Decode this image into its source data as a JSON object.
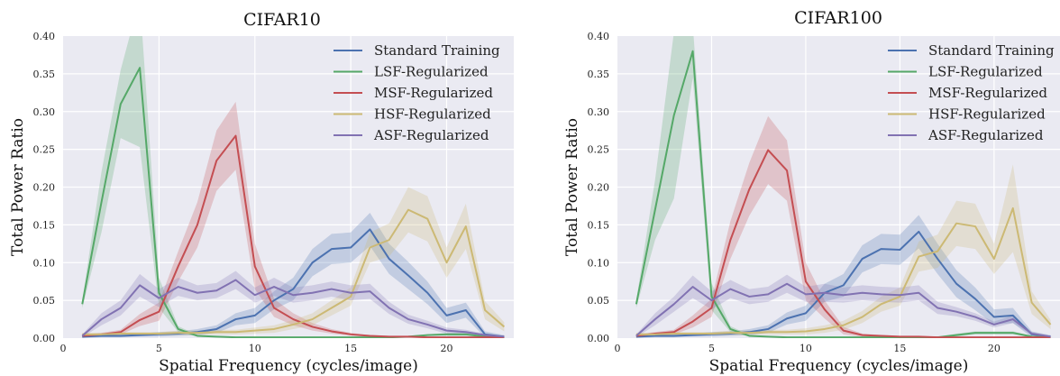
{
  "chart_data": [
    {
      "type": "line",
      "title": "CIFAR10",
      "xlabel": "Spatial Frequency (cycles/image)",
      "ylabel": "Total Power Ratio",
      "xlim": [
        0,
        23.5
      ],
      "ylim": [
        0,
        0.4
      ],
      "xticks": [
        "0",
        "5",
        "10",
        "15",
        "20"
      ],
      "yticks": [
        "0.00",
        "0.05",
        "0.10",
        "0.15",
        "0.20",
        "0.25",
        "0.30",
        "0.35",
        "0.40"
      ],
      "grid": true,
      "legend_position": "top-right",
      "x": [
        1,
        2,
        3,
        4,
        5,
        6,
        7,
        8,
        9,
        10,
        11,
        12,
        13,
        14,
        15,
        16,
        17,
        18,
        19,
        20,
        21,
        22,
        23
      ],
      "series": [
        {
          "name": "Standard Training",
          "color": "#4c72b0",
          "values": [
            0.002,
            0.003,
            0.003,
            0.004,
            0.005,
            0.006,
            0.008,
            0.012,
            0.025,
            0.03,
            0.05,
            0.065,
            0.1,
            0.118,
            0.12,
            0.144,
            0.105,
            0.083,
            0.06,
            0.03,
            0.037,
            0.005,
            0.002
          ],
          "band": [
            0.002,
            0.002,
            0.002,
            0.002,
            0.003,
            0.003,
            0.004,
            0.005,
            0.008,
            0.01,
            0.012,
            0.015,
            0.018,
            0.02,
            0.02,
            0.022,
            0.02,
            0.018,
            0.015,
            0.01,
            0.01,
            0.004,
            0.002
          ]
        },
        {
          "name": "LSF-Regularized",
          "color": "#55a868",
          "values": [
            0.045,
            0.18,
            0.31,
            0.358,
            0.06,
            0.012,
            0.003,
            0.002,
            0.001,
            0.001,
            0.001,
            0.001,
            0.001,
            0.001,
            0.001,
            0.001,
            0.001,
            0.002,
            0.004,
            0.005,
            0.005,
            0.002,
            0.001
          ],
          "band": [
            0.005,
            0.04,
            0.045,
            0.105,
            0.02,
            0.004,
            0.001,
            0.001,
            0.001,
            0.001,
            0.001,
            0.001,
            0.001,
            0.001,
            0.001,
            0.001,
            0.001,
            0.001,
            0.001,
            0.002,
            0.002,
            0.001,
            0.001
          ]
        },
        {
          "name": "MSF-Regularized",
          "color": "#c44e52",
          "values": [
            0.003,
            0.005,
            0.008,
            0.024,
            0.035,
            0.095,
            0.15,
            0.235,
            0.268,
            0.095,
            0.04,
            0.025,
            0.015,
            0.009,
            0.005,
            0.003,
            0.002,
            0.002,
            0.001,
            0.001,
            0.001,
            0.001,
            0.001
          ],
          "band": [
            0.002,
            0.002,
            0.003,
            0.008,
            0.012,
            0.02,
            0.03,
            0.04,
            0.045,
            0.03,
            0.012,
            0.008,
            0.005,
            0.003,
            0.002,
            0.001,
            0.001,
            0.001,
            0.001,
            0.001,
            0.001,
            0.001,
            0.001
          ]
        },
        {
          "name": "HSF-Regularized",
          "color": "#ccb974",
          "values": [
            0.005,
            0.005,
            0.006,
            0.006,
            0.006,
            0.007,
            0.007,
            0.008,
            0.008,
            0.01,
            0.012,
            0.018,
            0.025,
            0.04,
            0.055,
            0.12,
            0.13,
            0.17,
            0.158,
            0.1,
            0.148,
            0.037,
            0.015
          ],
          "band": [
            0.002,
            0.002,
            0.002,
            0.002,
            0.002,
            0.003,
            0.003,
            0.003,
            0.003,
            0.004,
            0.005,
            0.006,
            0.008,
            0.01,
            0.012,
            0.02,
            0.022,
            0.03,
            0.03,
            0.02,
            0.03,
            0.012,
            0.006
          ]
        },
        {
          "name": "ASF-Regularized",
          "color": "#8172b2",
          "values": [
            0.003,
            0.025,
            0.04,
            0.07,
            0.053,
            0.068,
            0.06,
            0.063,
            0.077,
            0.057,
            0.068,
            0.057,
            0.06,
            0.065,
            0.06,
            0.062,
            0.04,
            0.025,
            0.018,
            0.01,
            0.008,
            0.004,
            0.002
          ],
          "band": [
            0.002,
            0.008,
            0.01,
            0.015,
            0.012,
            0.012,
            0.01,
            0.01,
            0.012,
            0.01,
            0.012,
            0.01,
            0.01,
            0.01,
            0.01,
            0.01,
            0.008,
            0.006,
            0.005,
            0.004,
            0.003,
            0.002,
            0.001
          ]
        }
      ]
    },
    {
      "type": "line",
      "title": "CIFAR100",
      "xlabel": "Spatial Frequency (cycles/image)",
      "ylabel": "Total Power Ratio",
      "xlim": [
        0,
        23.5
      ],
      "ylim": [
        0,
        0.4
      ],
      "xticks": [
        "0",
        "5",
        "10",
        "15",
        "20"
      ],
      "yticks": [
        "0.00",
        "0.05",
        "0.10",
        "0.15",
        "0.20",
        "0.25",
        "0.30",
        "0.35",
        "0.40"
      ],
      "grid": true,
      "legend_position": "top-right",
      "x": [
        1,
        2,
        3,
        4,
        5,
        6,
        7,
        8,
        9,
        10,
        11,
        12,
        13,
        14,
        15,
        16,
        17,
        18,
        19,
        20,
        21,
        22,
        23
      ],
      "series": [
        {
          "name": "Standard Training",
          "color": "#4c72b0",
          "values": [
            0.002,
            0.003,
            0.003,
            0.004,
            0.005,
            0.006,
            0.008,
            0.012,
            0.026,
            0.033,
            0.06,
            0.07,
            0.105,
            0.118,
            0.117,
            0.141,
            0.105,
            0.072,
            0.052,
            0.028,
            0.03,
            0.005,
            0.002
          ],
          "band": [
            0.002,
            0.002,
            0.002,
            0.002,
            0.003,
            0.003,
            0.004,
            0.005,
            0.008,
            0.01,
            0.012,
            0.015,
            0.018,
            0.02,
            0.02,
            0.022,
            0.02,
            0.018,
            0.015,
            0.01,
            0.01,
            0.004,
            0.002
          ]
        },
        {
          "name": "LSF-Regularized",
          "color": "#55a868",
          "values": [
            0.045,
            0.17,
            0.295,
            0.38,
            0.055,
            0.012,
            0.003,
            0.002,
            0.001,
            0.001,
            0.001,
            0.001,
            0.001,
            0.001,
            0.001,
            0.001,
            0.001,
            0.004,
            0.007,
            0.007,
            0.007,
            0.002,
            0.001
          ],
          "band": [
            0.005,
            0.04,
            0.11,
            0.035,
            0.018,
            0.004,
            0.001,
            0.001,
            0.001,
            0.001,
            0.001,
            0.001,
            0.001,
            0.001,
            0.001,
            0.001,
            0.001,
            0.002,
            0.002,
            0.002,
            0.002,
            0.001,
            0.001
          ]
        },
        {
          "name": "MSF-Regularized",
          "color": "#c44e52",
          "values": [
            0.003,
            0.006,
            0.008,
            0.022,
            0.04,
            0.13,
            0.197,
            0.249,
            0.222,
            0.075,
            0.038,
            0.01,
            0.004,
            0.003,
            0.002,
            0.002,
            0.001,
            0.001,
            0.001,
            0.001,
            0.001,
            0.001,
            0.001
          ],
          "band": [
            0.002,
            0.002,
            0.003,
            0.008,
            0.012,
            0.025,
            0.035,
            0.045,
            0.04,
            0.025,
            0.012,
            0.005,
            0.002,
            0.001,
            0.001,
            0.001,
            0.001,
            0.001,
            0.001,
            0.001,
            0.001,
            0.001,
            0.001
          ]
        },
        {
          "name": "HSF-Regularized",
          "color": "#ccb974",
          "values": [
            0.005,
            0.005,
            0.006,
            0.006,
            0.006,
            0.007,
            0.007,
            0.008,
            0.008,
            0.009,
            0.012,
            0.017,
            0.028,
            0.045,
            0.055,
            0.108,
            0.115,
            0.152,
            0.148,
            0.105,
            0.172,
            0.047,
            0.018
          ],
          "band": [
            0.002,
            0.002,
            0.002,
            0.002,
            0.002,
            0.003,
            0.003,
            0.003,
            0.003,
            0.004,
            0.005,
            0.006,
            0.008,
            0.01,
            0.012,
            0.02,
            0.022,
            0.03,
            0.03,
            0.02,
            0.058,
            0.015,
            0.006
          ]
        },
        {
          "name": "ASF-Regularized",
          "color": "#8172b2",
          "values": [
            0.003,
            0.025,
            0.045,
            0.068,
            0.05,
            0.065,
            0.055,
            0.058,
            0.072,
            0.058,
            0.06,
            0.057,
            0.06,
            0.058,
            0.057,
            0.06,
            0.04,
            0.035,
            0.028,
            0.018,
            0.025,
            0.006,
            0.002
          ],
          "band": [
            0.002,
            0.008,
            0.01,
            0.015,
            0.012,
            0.012,
            0.01,
            0.01,
            0.012,
            0.01,
            0.012,
            0.01,
            0.01,
            0.01,
            0.01,
            0.01,
            0.008,
            0.006,
            0.005,
            0.004,
            0.005,
            0.002,
            0.001
          ]
        }
      ]
    }
  ]
}
